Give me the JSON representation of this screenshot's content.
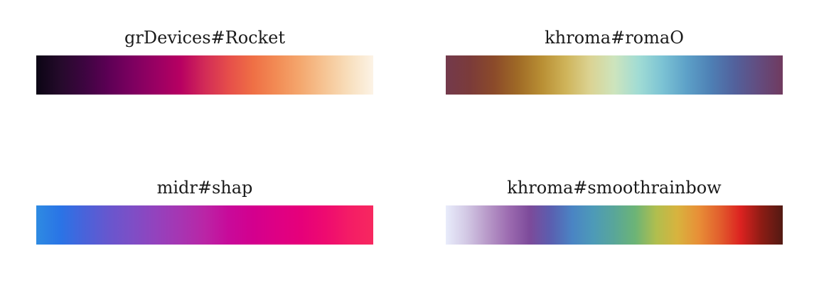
{
  "palettes": [
    {
      "title": "grDevices#Rocket",
      "colors": [
        "#0b0514",
        "#250a2b",
        "#3d0540",
        "#5d0055",
        "#7d0060",
        "#9a0063",
        "#b70062",
        "#d22b57",
        "#e64e4a",
        "#ef6f45",
        "#f28c55",
        "#f4a86f",
        "#f6c595",
        "#f8dfbd",
        "#fcf3e6"
      ]
    },
    {
      "title": "khroma#romaO",
      "colors": [
        "#733a4c",
        "#7b3b3a",
        "#8b4a2a",
        "#9f6a26",
        "#b98f34",
        "#cfb45a",
        "#dbd393",
        "#cde4bd",
        "#a1dcd4",
        "#7cc3d4",
        "#5da1c8",
        "#4e80b5",
        "#52619c",
        "#634c7f",
        "#703a5f"
      ]
    },
    {
      "title": "midr#shap",
      "colors": [
        "#2e8be2",
        "#2a74e6",
        "#4963da",
        "#6757ce",
        "#7e4ec6",
        "#9442bd",
        "#a735b2",
        "#ba25a6",
        "#c80a9a",
        "#d3008e",
        "#de0084",
        "#e6007a",
        "#ee0a70",
        "#f41c66",
        "#f7285f"
      ]
    },
    {
      "title": "khroma#smoothrainbow",
      "colors": [
        "#e8ecfb",
        "#d2c8e4",
        "#b798c8",
        "#9c6bb0",
        "#7c4a9a",
        "#5a5fb0",
        "#4a84c4",
        "#4d9ab8",
        "#59a699",
        "#6cb476",
        "#b1be4e",
        "#d8b33e",
        "#e88f37",
        "#e25f2d",
        "#dc2220",
        "#8c1c14",
        "#521a13"
      ]
    }
  ]
}
